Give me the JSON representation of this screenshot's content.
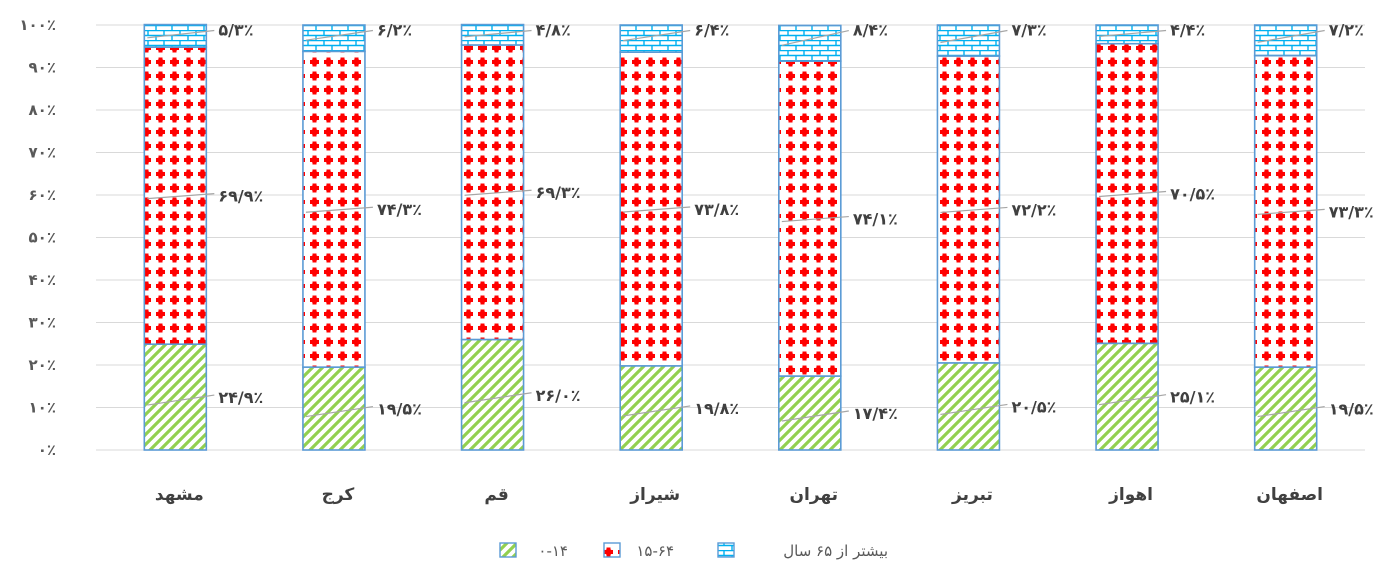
{
  "chart_data": {
    "type": "bar",
    "stacked": true,
    "percent_stacked": true,
    "categories": [
      "مشهد",
      "کرج",
      "قم",
      "شیراز",
      "تهران",
      "تبریز",
      "اهواز",
      "اصفهان"
    ],
    "series": [
      {
        "name": "۰-۱۴",
        "values": [
          24.9,
          19.5,
          26.0,
          19.8,
          17.4,
          20.5,
          25.1,
          19.5
        ],
        "labels": [
          "۲۴/۹٪",
          "۱۹/۵٪",
          "۲۶/۰٪",
          "۱۹/۸٪",
          "۱۷/۴٪",
          "۲۰/۵٪",
          "۲۵/۱٪",
          "۱۹/۵٪"
        ],
        "color": "#92d050",
        "pattern": "diagonal-stripes"
      },
      {
        "name": "۱۵-۶۴",
        "values": [
          69.9,
          74.3,
          69.3,
          73.8,
          74.1,
          72.2,
          70.5,
          73.3
        ],
        "labels": [
          "۶۹/۹٪",
          "۷۴/۳٪",
          "۶۹/۳٪",
          "۷۳/۸٪",
          "۷۴/۱٪",
          "۷۲/۲٪",
          "۷۰/۵٪",
          "۷۳/۳٪"
        ],
        "color": "#ff0000",
        "pattern": "red-dots"
      },
      {
        "name": "بیشتر از ۶۵ سال",
        "values": [
          5.3,
          6.2,
          4.8,
          6.4,
          8.4,
          7.3,
          4.4,
          7.2
        ],
        "labels": [
          "۵/۳٪",
          "۶/۲٪",
          "۴/۸٪",
          "۶/۴٪",
          "۸/۴٪",
          "۷/۳٪",
          "۴/۴٪",
          "۷/۲٪"
        ],
        "color": "#00b0f0",
        "pattern": "brick"
      }
    ],
    "ylim": [
      0,
      100
    ],
    "yticks": [
      0,
      10,
      20,
      30,
      40,
      50,
      60,
      70,
      80,
      90,
      100
    ],
    "ytick_labels": [
      "۰٪",
      "۱۰٪",
      "۲۰٪",
      "۳۰٪",
      "۴۰٪",
      "۵۰٪",
      "۶۰٪",
      "۷۰٪",
      "۸۰٪",
      "۹۰٪",
      "۱۰۰٪"
    ],
    "grid": true,
    "legend_position": "bottom",
    "title": "",
    "xlabel": "",
    "ylabel": ""
  }
}
